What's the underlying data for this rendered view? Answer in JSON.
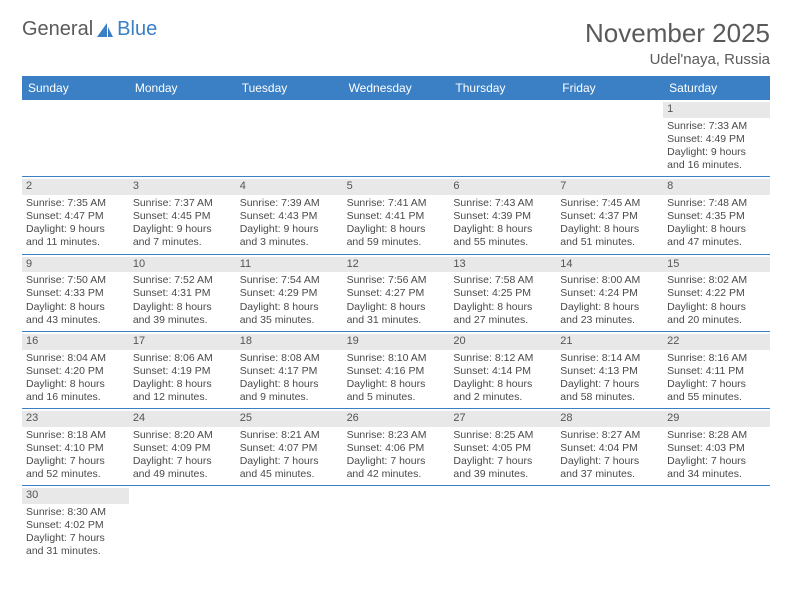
{
  "logo": {
    "part1": "General",
    "part2": "Blue"
  },
  "title": "November 2025",
  "subtitle": "Udel'naya, Russia",
  "colors": {
    "header_bg": "#3b7fc4",
    "header_fg": "#ffffff",
    "daynum_bg": "#e8e8e8",
    "week_divider": "#3b7fc4",
    "text": "#4a4a4a",
    "title_color": "#5a5a5a"
  },
  "day_labels": [
    "Sunday",
    "Monday",
    "Tuesday",
    "Wednesday",
    "Thursday",
    "Friday",
    "Saturday"
  ],
  "weeks": [
    [
      null,
      null,
      null,
      null,
      null,
      null,
      {
        "n": "1",
        "sr": "Sunrise: 7:33 AM",
        "ss": "Sunset: 4:49 PM",
        "d1": "Daylight: 9 hours",
        "d2": "and 16 minutes."
      }
    ],
    [
      {
        "n": "2",
        "sr": "Sunrise: 7:35 AM",
        "ss": "Sunset: 4:47 PM",
        "d1": "Daylight: 9 hours",
        "d2": "and 11 minutes."
      },
      {
        "n": "3",
        "sr": "Sunrise: 7:37 AM",
        "ss": "Sunset: 4:45 PM",
        "d1": "Daylight: 9 hours",
        "d2": "and 7 minutes."
      },
      {
        "n": "4",
        "sr": "Sunrise: 7:39 AM",
        "ss": "Sunset: 4:43 PM",
        "d1": "Daylight: 9 hours",
        "d2": "and 3 minutes."
      },
      {
        "n": "5",
        "sr": "Sunrise: 7:41 AM",
        "ss": "Sunset: 4:41 PM",
        "d1": "Daylight: 8 hours",
        "d2": "and 59 minutes."
      },
      {
        "n": "6",
        "sr": "Sunrise: 7:43 AM",
        "ss": "Sunset: 4:39 PM",
        "d1": "Daylight: 8 hours",
        "d2": "and 55 minutes."
      },
      {
        "n": "7",
        "sr": "Sunrise: 7:45 AM",
        "ss": "Sunset: 4:37 PM",
        "d1": "Daylight: 8 hours",
        "d2": "and 51 minutes."
      },
      {
        "n": "8",
        "sr": "Sunrise: 7:48 AM",
        "ss": "Sunset: 4:35 PM",
        "d1": "Daylight: 8 hours",
        "d2": "and 47 minutes."
      }
    ],
    [
      {
        "n": "9",
        "sr": "Sunrise: 7:50 AM",
        "ss": "Sunset: 4:33 PM",
        "d1": "Daylight: 8 hours",
        "d2": "and 43 minutes."
      },
      {
        "n": "10",
        "sr": "Sunrise: 7:52 AM",
        "ss": "Sunset: 4:31 PM",
        "d1": "Daylight: 8 hours",
        "d2": "and 39 minutes."
      },
      {
        "n": "11",
        "sr": "Sunrise: 7:54 AM",
        "ss": "Sunset: 4:29 PM",
        "d1": "Daylight: 8 hours",
        "d2": "and 35 minutes."
      },
      {
        "n": "12",
        "sr": "Sunrise: 7:56 AM",
        "ss": "Sunset: 4:27 PM",
        "d1": "Daylight: 8 hours",
        "d2": "and 31 minutes."
      },
      {
        "n": "13",
        "sr": "Sunrise: 7:58 AM",
        "ss": "Sunset: 4:25 PM",
        "d1": "Daylight: 8 hours",
        "d2": "and 27 minutes."
      },
      {
        "n": "14",
        "sr": "Sunrise: 8:00 AM",
        "ss": "Sunset: 4:24 PM",
        "d1": "Daylight: 8 hours",
        "d2": "and 23 minutes."
      },
      {
        "n": "15",
        "sr": "Sunrise: 8:02 AM",
        "ss": "Sunset: 4:22 PM",
        "d1": "Daylight: 8 hours",
        "d2": "and 20 minutes."
      }
    ],
    [
      {
        "n": "16",
        "sr": "Sunrise: 8:04 AM",
        "ss": "Sunset: 4:20 PM",
        "d1": "Daylight: 8 hours",
        "d2": "and 16 minutes."
      },
      {
        "n": "17",
        "sr": "Sunrise: 8:06 AM",
        "ss": "Sunset: 4:19 PM",
        "d1": "Daylight: 8 hours",
        "d2": "and 12 minutes."
      },
      {
        "n": "18",
        "sr": "Sunrise: 8:08 AM",
        "ss": "Sunset: 4:17 PM",
        "d1": "Daylight: 8 hours",
        "d2": "and 9 minutes."
      },
      {
        "n": "19",
        "sr": "Sunrise: 8:10 AM",
        "ss": "Sunset: 4:16 PM",
        "d1": "Daylight: 8 hours",
        "d2": "and 5 minutes."
      },
      {
        "n": "20",
        "sr": "Sunrise: 8:12 AM",
        "ss": "Sunset: 4:14 PM",
        "d1": "Daylight: 8 hours",
        "d2": "and 2 minutes."
      },
      {
        "n": "21",
        "sr": "Sunrise: 8:14 AM",
        "ss": "Sunset: 4:13 PM",
        "d1": "Daylight: 7 hours",
        "d2": "and 58 minutes."
      },
      {
        "n": "22",
        "sr": "Sunrise: 8:16 AM",
        "ss": "Sunset: 4:11 PM",
        "d1": "Daylight: 7 hours",
        "d2": "and 55 minutes."
      }
    ],
    [
      {
        "n": "23",
        "sr": "Sunrise: 8:18 AM",
        "ss": "Sunset: 4:10 PM",
        "d1": "Daylight: 7 hours",
        "d2": "and 52 minutes."
      },
      {
        "n": "24",
        "sr": "Sunrise: 8:20 AM",
        "ss": "Sunset: 4:09 PM",
        "d1": "Daylight: 7 hours",
        "d2": "and 49 minutes."
      },
      {
        "n": "25",
        "sr": "Sunrise: 8:21 AM",
        "ss": "Sunset: 4:07 PM",
        "d1": "Daylight: 7 hours",
        "d2": "and 45 minutes."
      },
      {
        "n": "26",
        "sr": "Sunrise: 8:23 AM",
        "ss": "Sunset: 4:06 PM",
        "d1": "Daylight: 7 hours",
        "d2": "and 42 minutes."
      },
      {
        "n": "27",
        "sr": "Sunrise: 8:25 AM",
        "ss": "Sunset: 4:05 PM",
        "d1": "Daylight: 7 hours",
        "d2": "and 39 minutes."
      },
      {
        "n": "28",
        "sr": "Sunrise: 8:27 AM",
        "ss": "Sunset: 4:04 PM",
        "d1": "Daylight: 7 hours",
        "d2": "and 37 minutes."
      },
      {
        "n": "29",
        "sr": "Sunrise: 8:28 AM",
        "ss": "Sunset: 4:03 PM",
        "d1": "Daylight: 7 hours",
        "d2": "and 34 minutes."
      }
    ],
    [
      {
        "n": "30",
        "sr": "Sunrise: 8:30 AM",
        "ss": "Sunset: 4:02 PM",
        "d1": "Daylight: 7 hours",
        "d2": "and 31 minutes."
      },
      null,
      null,
      null,
      null,
      null,
      null
    ]
  ]
}
